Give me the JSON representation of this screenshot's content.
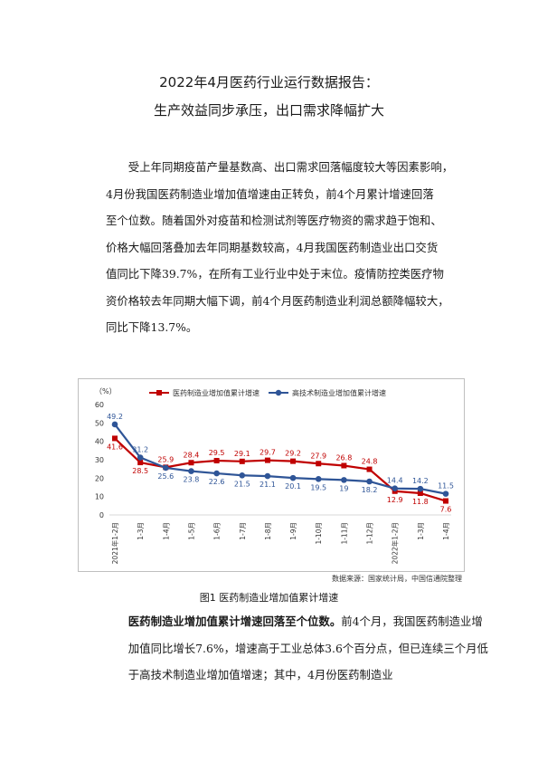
{
  "title_line1": "2022年4月医药行业运行数据报告：",
  "title_line2": "生产效益同步承压，出口需求降幅扩大",
  "para1_lines": [
    "受上年同期疫苗产量基数高、出口需求回落幅度较大等因素影响，",
    "4月份我国医药制造业增加值增速由正转负，前4个月累计增速回落",
    "至个位数。随着国外对疫苗和检测试剂等医疗物资的需求趋于饱和、",
    "价格大幅回落叠加去年同期基数较高，4月我国医药制造业出口交货",
    "值同比下降39.7%，在所有工业行业中处于末位。疫情防控类医疗物",
    "资价格较去年同期大幅下调，前4个月医药制造业利润总额降幅较大，",
    "同比下降13.7%。"
  ],
  "chart_data": {
    "type": "line",
    "ylabel": "（%）",
    "ylim": [
      0,
      60
    ],
    "yticks": [
      "0",
      "10",
      "20",
      "30",
      "40",
      "50",
      "60"
    ],
    "categories": [
      "2021年1-2月",
      "1-3月",
      "1-4月",
      "1-5月",
      "1-6月",
      "1-7月",
      "1-8月",
      "1-9月",
      "1-10月",
      "1-11月",
      "1-12月",
      "2022年1-2月",
      "1-3月",
      "1-4月"
    ],
    "series": [
      {
        "name": "医药制造业增加值累计增速",
        "color": "#c00000",
        "values": [
          41.6,
          28.5,
          25.9,
          28.4,
          29.5,
          29.1,
          29.7,
          29.2,
          27.9,
          26.8,
          24.8,
          12.9,
          11.8,
          7.6
        ],
        "labels": [
          "41.6",
          "28.5",
          "25.9",
          "28.4",
          "29.5",
          "29.1",
          "29.7",
          "29.2",
          "27.9",
          "26.8",
          "24.8",
          "12.9",
          "11.8",
          "7.6"
        ]
      },
      {
        "name": "高技术制造业增加值累计增速",
        "color": "#2f5597",
        "values": [
          49.2,
          31.2,
          25.6,
          23.8,
          22.6,
          21.5,
          21.1,
          20.1,
          19.5,
          19.0,
          18.2,
          14.4,
          14.2,
          11.5
        ],
        "labels": [
          "49.2",
          "31.2",
          "25.6",
          "23.8",
          "22.6",
          "21.5",
          "21.1",
          "20.1",
          "19.5",
          "19",
          "18.2",
          "14.4",
          "14.2",
          "11.5"
        ]
      }
    ]
  },
  "source": "数据来源：国家统计局，中国信通院整理",
  "figure_caption": "图1 医药制造业增加值累计增速",
  "para2_bold": "医药制造业增加值累计增速回落至个位数。",
  "para2_rest": "前4个月，我国医药制造业增加值同比增长7.6%，增速高于工业总体3.6个百分点，但已连续三个月低于高技术制造业增加值增速；其中，4月份医药制造业"
}
